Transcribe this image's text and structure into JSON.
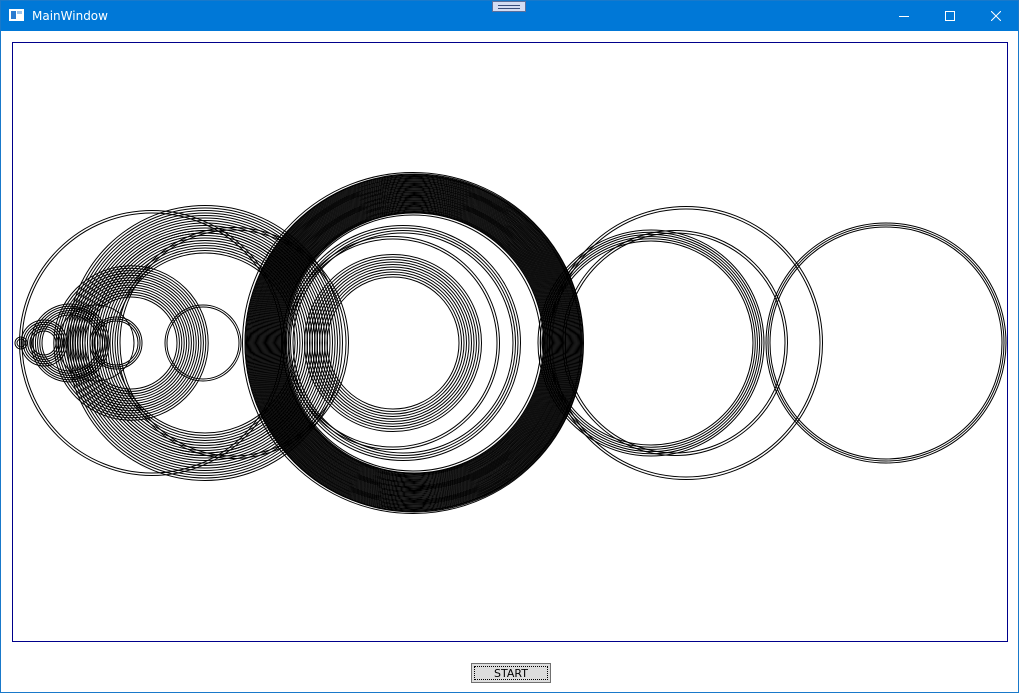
{
  "window": {
    "title": "MainWindow",
    "icons": {
      "app": "window-app-icon",
      "debug_toolbar": "debug-toolbar-icon",
      "minimize": "minimize-icon",
      "maximize": "maximize-icon",
      "close": "close-icon"
    },
    "colors": {
      "titlebar": "#0078d7",
      "canvas_border": "#00008b",
      "stroke": "#000000"
    }
  },
  "start_button": {
    "label": "START"
  }
}
